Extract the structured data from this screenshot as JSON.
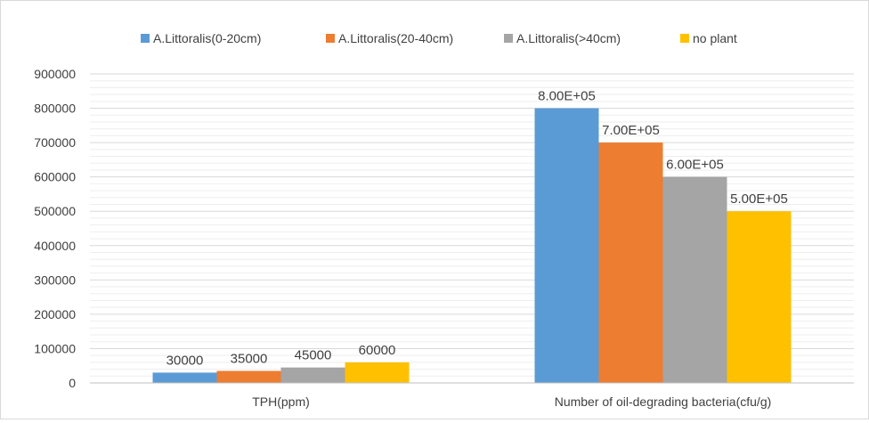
{
  "chart_data": {
    "type": "bar",
    "categories": [
      "TPH(ppm)",
      "Number of oil-degrading bacteria(cfu/g)"
    ],
    "series": [
      {
        "name": "A.Littoralis(0-20cm)",
        "color": "#5b9bd5",
        "values": [
          30000,
          800000
        ],
        "labels": [
          "30000",
          "8.00E+05"
        ]
      },
      {
        "name": "A.Littoralis(20-40cm)",
        "color": "#ed7d31",
        "values": [
          35000,
          700000
        ],
        "labels": [
          "35000",
          "7.00E+05"
        ]
      },
      {
        "name": "A.Littoralis(>40cm)",
        "color": "#a5a5a5",
        "values": [
          45000,
          600000
        ],
        "labels": [
          "45000",
          "6.00E+05"
        ]
      },
      {
        "name": "no plant",
        "color": "#ffc000",
        "values": [
          60000,
          500000
        ],
        "labels": [
          "60000",
          "5.00E+05"
        ]
      }
    ],
    "yticks": [
      "0",
      "100000",
      "200000",
      "300000",
      "400000",
      "500000",
      "600000",
      "700000",
      "800000",
      "900000"
    ],
    "ylim": [
      0,
      900000
    ],
    "minor_grid_step": 20000,
    "grid": true,
    "legend_position": "top"
  }
}
